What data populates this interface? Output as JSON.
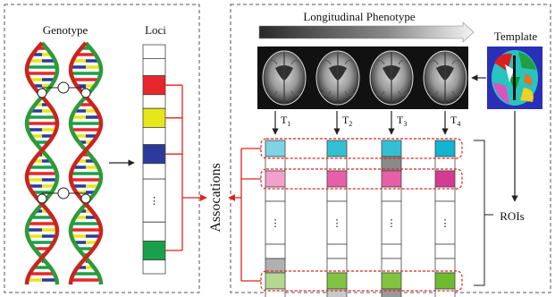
{
  "left_panel": {
    "genotype_label": "Genotype",
    "loci_label": "Loci",
    "loci_cells": [
      {
        "color": "#ffffff"
      },
      {
        "color": "#ffffff"
      },
      {
        "color": "#e8262a",
        "linked": true
      },
      {
        "color": "#ffffff"
      },
      {
        "color": "#e6e61a",
        "linked": true
      },
      {
        "color": "#ffffff"
      },
      {
        "color": "#2b3a9c",
        "linked": true
      },
      {
        "color": "#ffffff"
      },
      {
        "color": "#ffffff",
        "ellipsis": true
      },
      {
        "color": "#ffffff"
      },
      {
        "color": "#1aa04a",
        "linked": true
      },
      {
        "color": "#ffffff"
      }
    ]
  },
  "associations_label": "Assocations",
  "right_panel": {
    "phenotype_label": "Longitudinal Phenotype",
    "template_label": "Template",
    "rois_label": "ROIs",
    "ellipsis": "⋮",
    "timepoints": [
      {
        "sub": "1",
        "cells": [
          "#7fd3e3",
          "#ffffff",
          "#f4a0cc",
          "#ffffff",
          "",
          "#ffffff",
          "#b0b0b0",
          "#b5d890",
          "#ffffff"
        ]
      },
      {
        "sub": "2",
        "cells": [
          "#34bfd5",
          "#ffffff",
          "#e65fa8",
          "#ffffff",
          "",
          "#ffffff",
          "#ffffff",
          "#82c341",
          "#c8c8c8"
        ]
      },
      {
        "sub": "3",
        "cells": [
          "#34bfd5",
          "#8a8a8a",
          "#e65fa8",
          "#ffffff",
          "",
          "#ffffff",
          "#ffffff",
          "#82c341",
          "#9a9a9a"
        ]
      },
      {
        "sub": "4",
        "cells": [
          "#12b4cf",
          "#ffffff",
          "#d63a92",
          "#ffffff",
          "",
          "#ffffff",
          "#ffffff",
          "#6fbb2e",
          "#ffffff"
        ]
      }
    ]
  },
  "colors": {
    "arrow_red": "#e2231a",
    "dashed_border": "#555555"
  }
}
